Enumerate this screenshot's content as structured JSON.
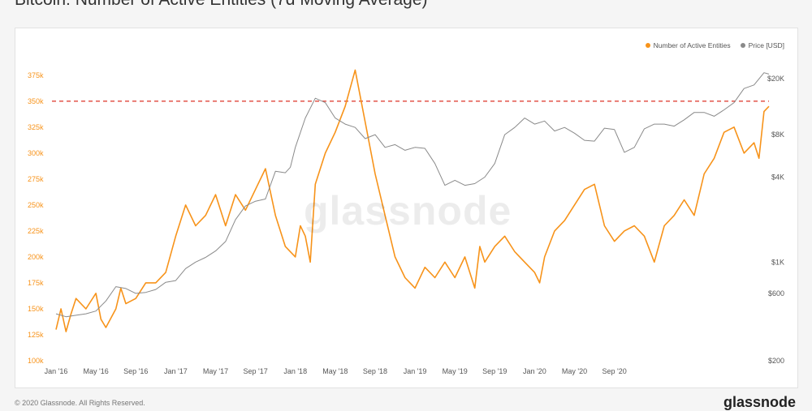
{
  "title": "Bitcoin: Number of Active Entities (7d Moving Average)",
  "watermark": "glassnode",
  "footer": {
    "copyright": "© 2020 Glassnode. All Rights Reserved.",
    "logo": "glassnode"
  },
  "legend": [
    {
      "label": "Number of Active Entities",
      "color": "#f7931a"
    },
    {
      "label": "Price [USD]",
      "color": "#8a8a8a"
    }
  ],
  "chart_data": {
    "type": "line",
    "title": "Bitcoin: Number of Active Entities (7d Moving Average)",
    "x_tick_labels": [
      "Jan '16",
      "May '16",
      "Sep '16",
      "Jan '17",
      "May '17",
      "Sep '17",
      "Jan '18",
      "May '18",
      "Sep '18",
      "Jan '19",
      "May '19",
      "Sep '19",
      "Jan '20",
      "May '20",
      "Sep '20"
    ],
    "x_range": [
      "Jan '16",
      "Dec '20"
    ],
    "left_axis": {
      "range": [
        100000,
        385000
      ],
      "tick_labels": [
        "100k",
        "125k",
        "150k",
        "175k",
        "200k",
        "225k",
        "250k",
        "275k",
        "300k",
        "325k",
        "350k",
        "375k"
      ],
      "color": "#f7931a"
    },
    "right_axis": {
      "scale": "log",
      "range": [
        200,
        25000
      ],
      "ticks": [
        200,
        600,
        1000,
        4000,
        8000,
        20000
      ],
      "tick_labels": [
        "$200",
        "$600",
        "$1K",
        "$4K",
        "$8K",
        "$20K"
      ]
    },
    "reference_line": {
      "value": 350000,
      "style": "dashed",
      "color": "#e0463a"
    },
    "grid": false,
    "legend_position": "top-right",
    "series": [
      {
        "name": "Number of Active Entities",
        "axis": "left",
        "color": "#f7931a",
        "x_months": [
          0,
          0.5,
          1,
          1.5,
          2,
          3,
          4,
          4.5,
          5,
          6,
          6.5,
          7,
          8,
          9,
          10,
          11,
          12,
          13,
          14,
          15,
          16,
          17,
          18,
          19,
          20,
          21,
          22,
          23,
          24,
          24.5,
          25,
          25.5,
          26,
          27,
          28,
          29,
          30,
          31,
          32,
          33,
          34,
          35,
          36,
          37,
          38,
          39,
          40,
          41,
          42,
          42.5,
          43,
          44,
          45,
          46,
          47,
          48,
          48.5,
          49,
          50,
          51,
          52,
          53,
          54,
          55,
          56,
          57,
          58,
          59,
          60,
          61,
          62,
          63,
          64,
          65,
          66,
          67,
          68,
          69,
          70,
          70.5,
          71,
          71.5
        ],
        "values": [
          130000,
          150000,
          128000,
          145000,
          160000,
          150000,
          165000,
          140000,
          132000,
          150000,
          170000,
          155000,
          160000,
          175000,
          175000,
          185000,
          220000,
          250000,
          230000,
          240000,
          260000,
          230000,
          260000,
          245000,
          265000,
          285000,
          240000,
          210000,
          200000,
          230000,
          220000,
          195000,
          270000,
          300000,
          320000,
          345000,
          380000,
          330000,
          280000,
          240000,
          200000,
          180000,
          170000,
          190000,
          180000,
          195000,
          180000,
          200000,
          170000,
          210000,
          195000,
          210000,
          220000,
          205000,
          195000,
          185000,
          175000,
          200000,
          225000,
          235000,
          250000,
          265000,
          270000,
          230000,
          215000,
          225000,
          230000,
          220000,
          195000,
          230000,
          240000,
          255000,
          240000,
          280000,
          295000,
          320000,
          325000,
          300000,
          310000,
          295000,
          340000,
          345000
        ]
      },
      {
        "name": "Price [USD]",
        "axis": "right",
        "color": "#8a8a8a",
        "x_months": [
          0,
          1,
          2,
          3,
          4,
          5,
          6,
          7,
          8,
          9,
          10,
          11,
          12,
          13,
          14,
          15,
          16,
          17,
          18,
          19,
          20,
          21,
          22,
          23,
          23.5,
          24,
          25,
          26,
          27,
          28,
          29,
          30,
          31,
          32,
          33,
          34,
          35,
          36,
          37,
          38,
          39,
          40,
          41,
          42,
          43,
          44,
          45,
          46,
          47,
          48,
          49,
          50,
          51,
          52,
          53,
          54,
          55,
          56,
          57,
          58,
          59,
          60,
          61,
          62,
          63,
          64,
          65,
          66,
          67,
          68,
          69,
          70,
          71,
          71.5
        ],
        "values": [
          430,
          410,
          420,
          430,
          450,
          530,
          670,
          650,
          600,
          610,
          640,
          720,
          740,
          900,
          1000,
          1080,
          1200,
          1400,
          2000,
          2500,
          2700,
          2800,
          4400,
          4300,
          4700,
          6500,
          10500,
          14500,
          13500,
          10500,
          9500,
          9000,
          7500,
          8000,
          6500,
          6800,
          6200,
          6500,
          6400,
          5000,
          3500,
          3800,
          3500,
          3600,
          4000,
          5000,
          8000,
          9000,
          10500,
          9500,
          10000,
          8500,
          9000,
          8200,
          7300,
          7200,
          8900,
          8700,
          6000,
          6500,
          8800,
          9500,
          9500,
          9200,
          10200,
          11500,
          11500,
          10800,
          12000,
          13500,
          17000,
          18000,
          22000,
          21500
        ]
      }
    ]
  }
}
